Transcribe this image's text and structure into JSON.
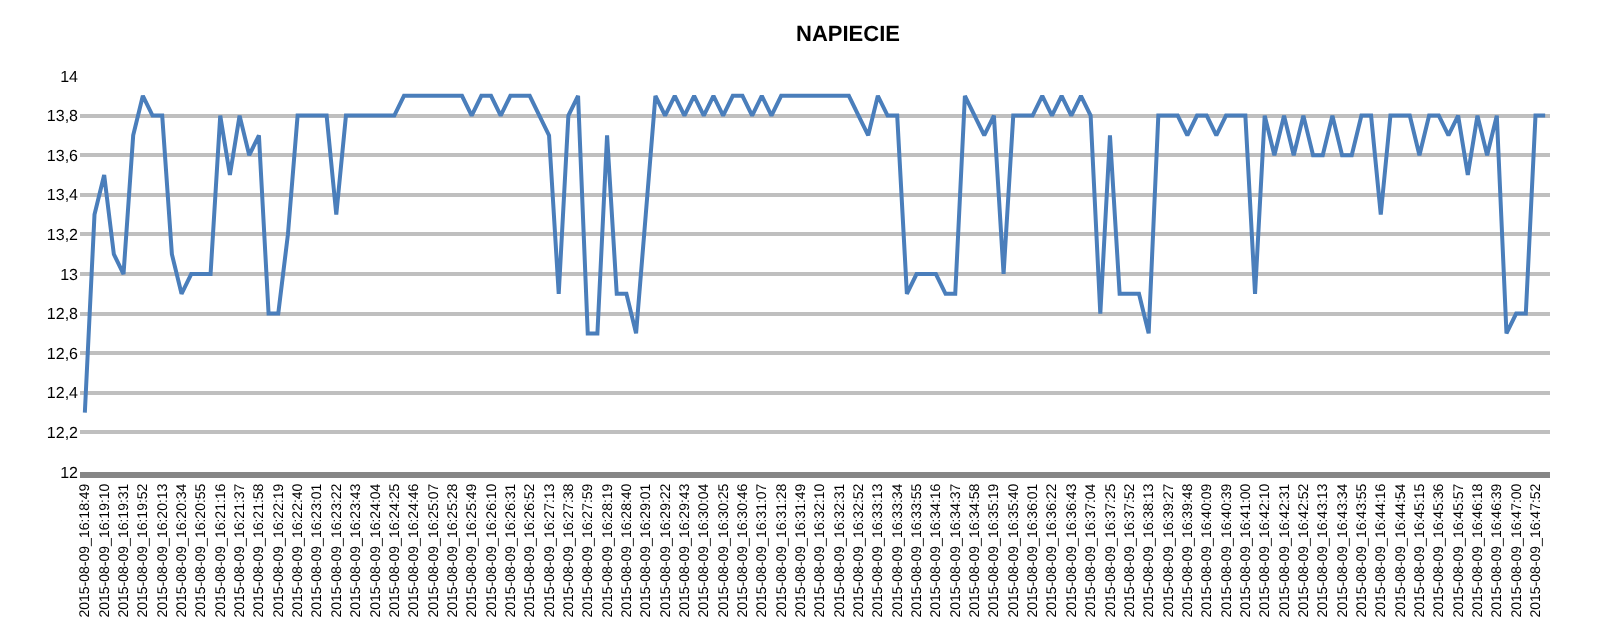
{
  "chart_data": {
    "type": "line",
    "title": "NAPIECIE",
    "categories": [
      "2015-08-09_16:18:49",
      null,
      "2015-08-09_16:19:10",
      null,
      "2015-08-09_16:19:31",
      null,
      "2015-08-09_16:19:52",
      null,
      "2015-08-09_16:20:13",
      null,
      "2015-08-09_16:20:34",
      null,
      "2015-08-09_16:20:55",
      null,
      "2015-08-09_16:21:16",
      null,
      "2015-08-09_16:21:37",
      null,
      "2015-08-09_16:21:58",
      null,
      "2015-08-09_16:22:19",
      null,
      "2015-08-09_16:22:40",
      null,
      "2015-08-09_16:23:01",
      null,
      "2015-08-09_16:23:22",
      null,
      "2015-08-09_16:23:43",
      null,
      "2015-08-09_16:24:04",
      null,
      "2015-08-09_16:24:25",
      null,
      "2015-08-09_16:24:46",
      null,
      "2015-08-09_16:25:07",
      null,
      "2015-08-09_16:25:28",
      null,
      "2015-08-09_16:25:49",
      null,
      "2015-08-09_16:26:10",
      null,
      "2015-08-09_16:26:31",
      null,
      "2015-08-09_16:26:52",
      null,
      "2015-08-09_16:27:13",
      null,
      "2015-08-09_16:27:38",
      null,
      "2015-08-09_16:27:59",
      null,
      "2015-08-09_16:28:19",
      null,
      "2015-08-09_16:28:40",
      null,
      "2015-08-09_16:29:01",
      null,
      "2015-08-09_16:29:22",
      null,
      "2015-08-09_16:29:43",
      null,
      "2015-08-09_16:30:04",
      null,
      "2015-08-09_16:30:25",
      null,
      "2015-08-09_16:30:46",
      null,
      "2015-08-09_16:31:07",
      null,
      "2015-08-09_16:31:28",
      null,
      "2015-08-09_16:31:49",
      null,
      "2015-08-09_16:32:10",
      null,
      "2015-08-09_16:32:31",
      null,
      "2015-08-09_16:32:52",
      null,
      "2015-08-09_16:33:13",
      null,
      "2015-08-09_16:33:34",
      null,
      "2015-08-09_16:33:55",
      null,
      "2015-08-09_16:34:16",
      null,
      "2015-08-09_16:34:37",
      null,
      "2015-08-09_16:34:58",
      null,
      "2015-08-09_16:35:19",
      null,
      "2015-08-09_16:35:40",
      null,
      "2015-08-09_16:36:01",
      null,
      "2015-08-09_16:36:22",
      null,
      "2015-08-09_16:36:43",
      null,
      "2015-08-09_16:37:04",
      null,
      "2015-08-09_16:37:25",
      null,
      "2015-08-09_16:37:52",
      null,
      "2015-08-09_16:38:13",
      null,
      "2015-08-09_16:39:27",
      null,
      "2015-08-09_16:39:48",
      null,
      "2015-08-09_16:40:09",
      null,
      "2015-08-09_16:40:39",
      null,
      "2015-08-09_16:41:00",
      null,
      "2015-08-09_16:42:10",
      null,
      "2015-08-09_16:42:31",
      null,
      "2015-08-09_16:42:52",
      null,
      "2015-08-09_16:43:13",
      null,
      "2015-08-09_16:43:34",
      null,
      "2015-08-09_16:43:55",
      null,
      "2015-08-09_16:44:16",
      null,
      "2015-08-09_16:44:54",
      null,
      "2015-08-09_16:45:15",
      null,
      "2015-08-09_16:45:36",
      null,
      "2015-08-09_16:45:57",
      null,
      "2015-08-09_16:46:18",
      null,
      "2015-08-09_16:46:39",
      null,
      "2015-08-09_16:47:00",
      null,
      "2015-08-09_16:47:52",
      null
    ],
    "series": [
      {
        "color": "#4a7ebb",
        "values": [
          12.3,
          13.3,
          13.5,
          13.1,
          13.0,
          13.7,
          13.9,
          13.8,
          13.8,
          13.1,
          12.9,
          13.0,
          13.0,
          13.0,
          13.8,
          13.5,
          13.8,
          13.6,
          13.7,
          12.8,
          12.8,
          13.2,
          13.8,
          13.8,
          13.8,
          13.8,
          13.3,
          13.8,
          13.8,
          13.8,
          13.8,
          13.8,
          13.8,
          13.9,
          13.9,
          13.9,
          13.9,
          13.9,
          13.9,
          13.9,
          13.8,
          13.9,
          13.9,
          13.8,
          13.9,
          13.9,
          13.9,
          13.8,
          13.7,
          12.9,
          13.8,
          13.9,
          12.7,
          12.7,
          13.7,
          12.9,
          12.9,
          12.7,
          13.3,
          13.9,
          13.8,
          13.9,
          13.8,
          13.9,
          13.8,
          13.9,
          13.8,
          13.9,
          13.9,
          13.8,
          13.9,
          13.8,
          13.9,
          13.9,
          13.9,
          13.9,
          13.9,
          13.9,
          13.9,
          13.9,
          13.8,
          13.7,
          13.9,
          13.8,
          13.8,
          12.9,
          13.0,
          13.0,
          13.0,
          12.9,
          12.9,
          13.9,
          13.8,
          13.7,
          13.8,
          13.0,
          13.8,
          13.8,
          13.8,
          13.9,
          13.8,
          13.9,
          13.8,
          13.9,
          13.8,
          12.8,
          13.7,
          12.9,
          12.9,
          12.9,
          12.7,
          13.8,
          13.8,
          13.8,
          13.7,
          13.8,
          13.8,
          13.7,
          13.8,
          13.8,
          13.8,
          12.9,
          13.8,
          13.6,
          13.8,
          13.6,
          13.8,
          13.6,
          13.6,
          13.8,
          13.6,
          13.6,
          13.8,
          13.8,
          13.3,
          13.8,
          13.8,
          13.8,
          13.6,
          13.8,
          13.8,
          13.7,
          13.8,
          13.5,
          13.8,
          13.6,
          13.8,
          12.7,
          12.8,
          12.8,
          13.8,
          13.8
        ]
      }
    ],
    "ylim": [
      12,
      14
    ],
    "yticks": [
      12,
      {
        "value": 12.2,
        "label": "12,2"
      },
      {
        "value": 12.4,
        "label": "12,4"
      },
      {
        "value": 12.6,
        "label": "12,6"
      },
      {
        "value": 12.8,
        "label": "12,8"
      },
      13,
      {
        "value": 13.2,
        "label": "13,2"
      },
      {
        "value": 13.4,
        "label": "13,4"
      },
      {
        "value": 13.6,
        "label": "13,6"
      },
      {
        "value": 13.8,
        "label": "13,8"
      },
      14
    ],
    "grid": "y",
    "marker": "none",
    "line_style": "solid"
  }
}
